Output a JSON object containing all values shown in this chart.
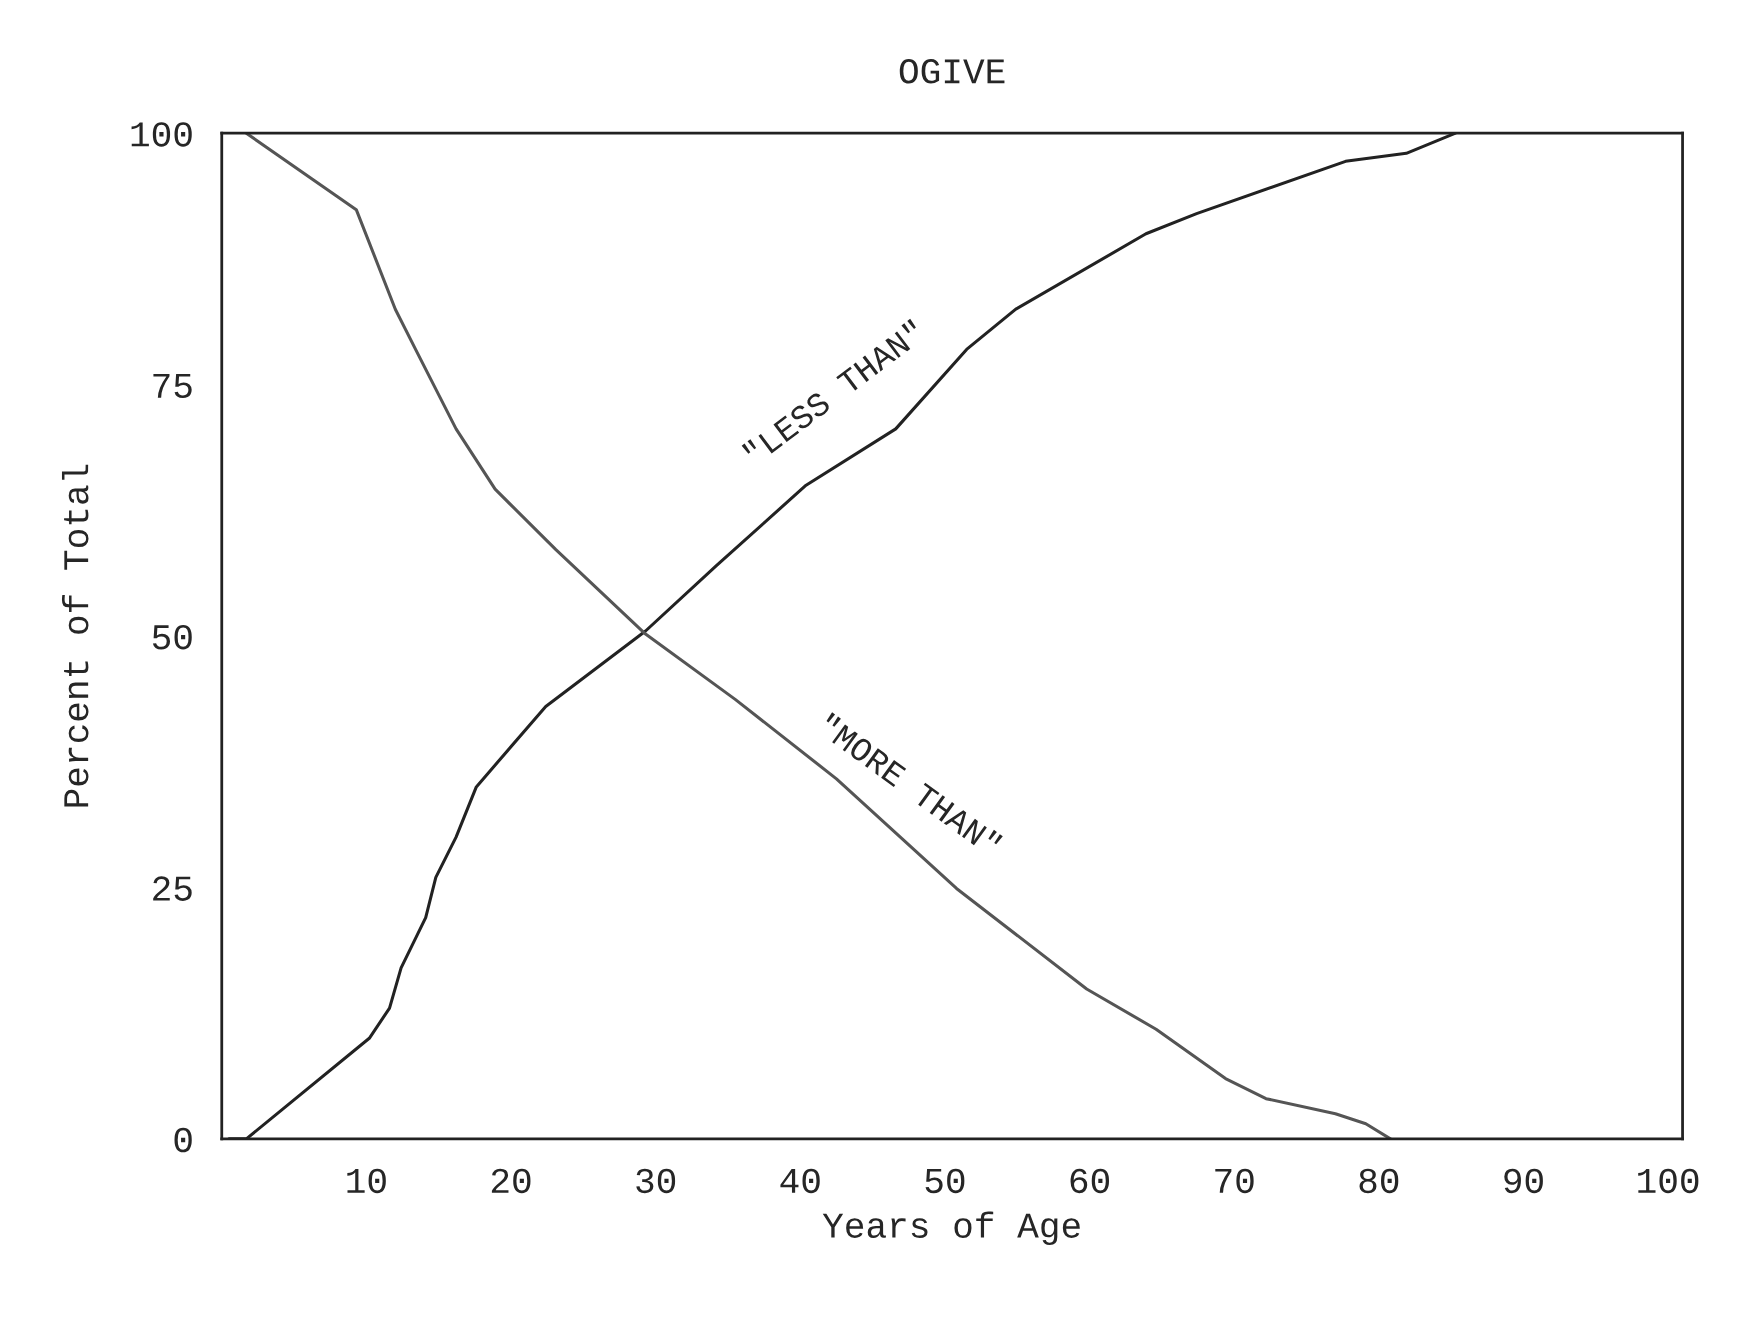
{
  "chart_data": {
    "type": "line",
    "title": "OGIVE",
    "xlabel": "Years of Age",
    "ylabel": "Percent of Total",
    "xlim": [
      0,
      101
    ],
    "xticks": [
      10,
      20,
      30,
      40,
      50,
      60,
      70,
      80,
      90,
      100
    ],
    "ylim": [
      0,
      100
    ],
    "yticks": [
      0,
      25,
      50,
      75,
      100
    ],
    "grid": false,
    "legend": false,
    "marker": "none",
    "line_style": "solid",
    "series": [
      {
        "color": "#222222",
        "x": [
          0.5,
          1.7,
          10.2,
          11.6,
          12.4,
          14.1,
          14.8,
          16.2,
          17.6,
          22.4,
          29.3,
          34.2,
          40.4,
          46.6,
          51.5,
          54.9,
          63.9,
          67.4,
          77.7,
          81.9,
          85.3
        ],
        "values": [
          0,
          0,
          10,
          13,
          17,
          22,
          26,
          30,
          35,
          43,
          50.5,
          57,
          65,
          70.6,
          78.5,
          82.5,
          90,
          92,
          97.2,
          98,
          100
        ]
      },
      {
        "color": "#555555",
        "x": [
          1.7,
          9.3,
          12,
          13.4,
          16.2,
          18.9,
          23.1,
          29.3,
          35.5,
          42.5,
          50.8,
          59.8,
          64.6,
          69.4,
          72.2,
          77,
          79.1,
          80.8
        ],
        "values": [
          100,
          92.4,
          82.5,
          78.5,
          70.6,
          64.6,
          58.6,
          50.2,
          43.7,
          35.8,
          24.9,
          14.9,
          10.9,
          6,
          4,
          2.5,
          1.5,
          0
        ]
      }
    ],
    "annotations": [
      "\"LESS THAN\"",
      "\"MORE THAN\""
    ]
  }
}
